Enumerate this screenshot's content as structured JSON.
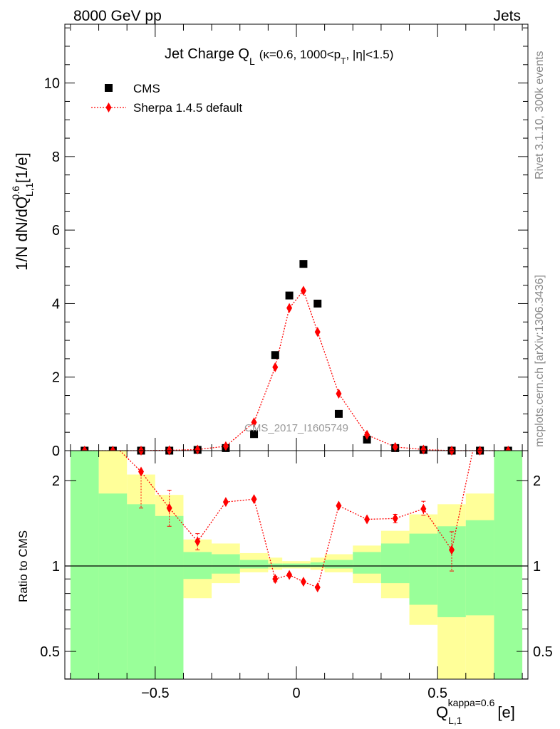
{
  "header": {
    "left": "8000 GeV pp",
    "right": "Jets"
  },
  "side_labels": {
    "rivet": "Rivet 3.1.10,  300k events",
    "mcplots": "mcplots.cern.ch [arXiv:1306.3436]"
  },
  "watermark": "CMS_2017_I1605749",
  "chart_data": [
    {
      "type": "scatter",
      "title": "Jet Charge Q_L (κ=0.6, 1000<p_T, |η|<1.5)",
      "title_main": "Jet Charge Q",
      "title_sub": "L",
      "title_rest": "(κ=0.6, 1000<p",
      "title_sub2": "T",
      "title_end": ", |η|<1.5)",
      "ylabel": "1/N dN/dQ_{L,1}^{0.6} [1/e]",
      "ylabel_main": "1/N dN/dQ",
      "ylabel_sub": "L,1",
      "ylabel_sup": "0.6",
      "ylabel_unit": "[1/e]",
      "xlim": [
        -0.82,
        0.82
      ],
      "ylim": [
        0,
        11.6
      ],
      "y_ticks": [
        0,
        2,
        4,
        6,
        8,
        10
      ],
      "y_tick_labels": [
        "0",
        "2",
        "4",
        "6",
        "8",
        "10"
      ],
      "legend": "top-left",
      "series": [
        {
          "name": "CMS",
          "color": "#000000",
          "marker": "square",
          "x": [
            -0.75,
            -0.65,
            -0.55,
            -0.45,
            -0.35,
            -0.25,
            -0.15,
            -0.075,
            -0.025,
            0.025,
            0.075,
            0.15,
            0.25,
            0.35,
            0.45,
            0.55,
            0.65,
            0.75
          ],
          "y": [
            0.0,
            0.0,
            0.0,
            0.0,
            0.02,
            0.07,
            0.45,
            2.6,
            4.22,
            5.08,
            4.0,
            1.0,
            0.3,
            0.07,
            0.02,
            0.0,
            0.0,
            0.0
          ]
        },
        {
          "name": "Sherpa 1.4.5 default",
          "color": "#ff0000",
          "marker": "diamond",
          "line": "dotted",
          "x": [
            -0.75,
            -0.65,
            -0.55,
            -0.45,
            -0.35,
            -0.25,
            -0.15,
            -0.075,
            -0.025,
            0.025,
            0.075,
            0.15,
            0.25,
            0.35,
            0.45,
            0.55,
            0.65,
            0.75
          ],
          "y": [
            0.0,
            0.0,
            0.0,
            0.01,
            0.03,
            0.12,
            0.77,
            2.27,
            3.88,
            4.35,
            3.23,
            1.55,
            0.43,
            0.1,
            0.03,
            0.0,
            0.0,
            0.0
          ]
        }
      ]
    },
    {
      "type": "line",
      "ylabel": "Ratio to CMS",
      "xlabel": "Q_{L,1}^{kappa=0.6} [e]",
      "xlabel_main": "Q",
      "xlabel_sub": "L,1",
      "xlabel_sup": "kappa=0.6",
      "xlabel_unit": "[e]",
      "xlim": [
        -0.82,
        0.82
      ],
      "ylim": [
        0.38,
        2.3
      ],
      "log_y": true,
      "y_ticks": [
        0.5,
        1,
        2
      ],
      "y_tick_labels": [
        "0.5",
        "1",
        "2"
      ],
      "x_ticks": [
        -0.5,
        0,
        0.5
      ],
      "x_tick_labels": [
        "−0.5",
        "0",
        "0.5"
      ],
      "bins": [
        -0.8,
        -0.7,
        -0.6,
        -0.5,
        -0.4,
        -0.3,
        -0.2,
        -0.1,
        -0.05,
        0.0,
        0.05,
        0.1,
        0.2,
        0.3,
        0.4,
        0.5,
        0.6,
        0.7,
        0.8
      ],
      "bands": [
        {
          "name": "CMS stat ⊕ syst (outer)",
          "color": "#ffff99",
          "lo": [
            0.1,
            0.1,
            0.38,
            0.65,
            0.77,
            0.87,
            0.95,
            0.97,
            0.98,
            0.98,
            0.97,
            0.95,
            0.87,
            0.77,
            0.62,
            0.38,
            0.1,
            0.1
          ],
          "hi": [
            3.0,
            3.0,
            2.1,
            1.78,
            1.24,
            1.2,
            1.11,
            1.07,
            1.04,
            1.04,
            1.07,
            1.1,
            1.18,
            1.33,
            1.52,
            1.65,
            1.8,
            3.0
          ]
        },
        {
          "name": "CMS stat (inner)",
          "color": "#99ff99",
          "lo": [
            0.1,
            0.1,
            0.39,
            0.1,
            0.9,
            0.94,
            0.98,
            0.99,
            0.99,
            0.99,
            0.99,
            0.98,
            0.94,
            0.87,
            0.73,
            0.66,
            0.67,
            0.1
          ],
          "hi": [
            3.0,
            1.8,
            1.65,
            1.5,
            1.12,
            1.1,
            1.05,
            1.02,
            1.02,
            1.02,
            1.03,
            1.05,
            1.12,
            1.2,
            1.3,
            1.38,
            1.45,
            3.0
          ]
        }
      ],
      "series": [
        {
          "name": "Sherpa 1.4.5 default / CMS",
          "color": "#ff0000",
          "marker": "diamond",
          "line": "dotted",
          "x": [
            -0.55,
            -0.45,
            -0.35,
            -0.25,
            -0.15,
            -0.075,
            -0.025,
            0.025,
            0.075,
            0.15,
            0.25,
            0.35,
            0.45,
            0.55
          ],
          "y": [
            2.15,
            1.6,
            1.22,
            1.68,
            1.72,
            0.9,
            0.93,
            0.88,
            0.84,
            1.63,
            1.46,
            1.47,
            1.59,
            1.14
          ],
          "err_lo": [
            0.55,
            0.22,
            0.08,
            0.0,
            0.0,
            0.02,
            0.01,
            0.0,
            0.0,
            0.0,
            0.0,
            0.05,
            0.08,
            0.18
          ],
          "err_hi": [
            0.0,
            0.25,
            0.08,
            0.0,
            0.0,
            0.02,
            0.01,
            0.0,
            0.0,
            0.0,
            0.0,
            0.05,
            0.1,
            0.18
          ],
          "offscale": [
            {
              "x": -0.625,
              "dir": "up"
            },
            {
              "x": 0.625,
              "dir": "up"
            }
          ]
        }
      ]
    }
  ]
}
